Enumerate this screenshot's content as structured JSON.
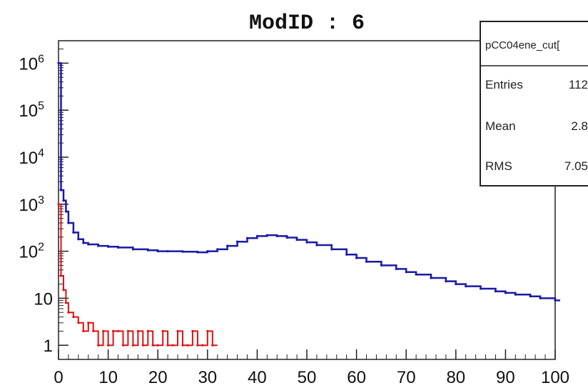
{
  "chart_data": {
    "type": "line",
    "title": "ModID : 6",
    "xlabel": "",
    "ylabel": "",
    "xlim": [
      0,
      100
    ],
    "ylim": [
      0.5,
      3000000
    ],
    "y_scale": "log",
    "x_ticks": [
      "0",
      "10",
      "20",
      "30",
      "40",
      "50",
      "60",
      "70",
      "80",
      "90",
      "100"
    ],
    "y_ticks": [
      {
        "value": 1,
        "label": "1"
      },
      {
        "value": 10,
        "label": "10"
      },
      {
        "value": 100,
        "label": "10",
        "exp": "2"
      },
      {
        "value": 1000,
        "label": "10",
        "exp": "3"
      },
      {
        "value": 10000,
        "label": "10",
        "exp": "4"
      },
      {
        "value": 100000,
        "label": "10",
        "exp": "5"
      },
      {
        "value": 1000000,
        "label": "10",
        "exp": "6"
      }
    ],
    "series": [
      {
        "color": "#1a1aa6",
        "x": [
          0,
          0.5,
          1,
          1.5,
          2,
          3,
          4,
          5,
          6,
          8,
          10,
          12,
          15,
          18,
          20,
          22,
          25,
          28,
          30,
          32,
          34,
          36,
          38,
          40,
          42,
          44,
          46,
          48,
          50,
          52,
          55,
          58,
          60,
          62,
          65,
          68,
          70,
          72,
          75,
          78,
          80,
          82,
          85,
          88,
          90,
          92,
          95,
          97,
          100
        ],
        "y": [
          1000000,
          2000,
          1200,
          700,
          400,
          250,
          180,
          150,
          140,
          130,
          125,
          120,
          110,
          105,
          100,
          100,
          98,
          95,
          100,
          110,
          130,
          160,
          190,
          210,
          220,
          210,
          195,
          175,
          155,
          135,
          110,
          85,
          72,
          60,
          50,
          42,
          36,
          32,
          27,
          23,
          20,
          18,
          16,
          14,
          13,
          12,
          11,
          10,
          9
        ]
      },
      {
        "color": "#e01010",
        "x": [
          0,
          0.5,
          1,
          1.5,
          2,
          3,
          4,
          5,
          6,
          7,
          8,
          9,
          10,
          11,
          12,
          13,
          14,
          15,
          16,
          17,
          18,
          19,
          20,
          21,
          22,
          23,
          24,
          25,
          26,
          27,
          28,
          29,
          30,
          31
        ],
        "y": [
          1000,
          30,
          15,
          8,
          5,
          4,
          3,
          2,
          3,
          2,
          1,
          2,
          1,
          2,
          2,
          1,
          2,
          1,
          2,
          1,
          2,
          1,
          1,
          2,
          1,
          1,
          2,
          1,
          1,
          2,
          1,
          1,
          2,
          1
        ]
      }
    ],
    "stats_box": {
      "header": "pCC04ene_cut[",
      "rows": [
        {
          "label": "Entries",
          "value": "112"
        },
        {
          "label": "Mean",
          "value": "2.8"
        },
        {
          "label": "RMS",
          "value": "7.05"
        }
      ]
    }
  }
}
